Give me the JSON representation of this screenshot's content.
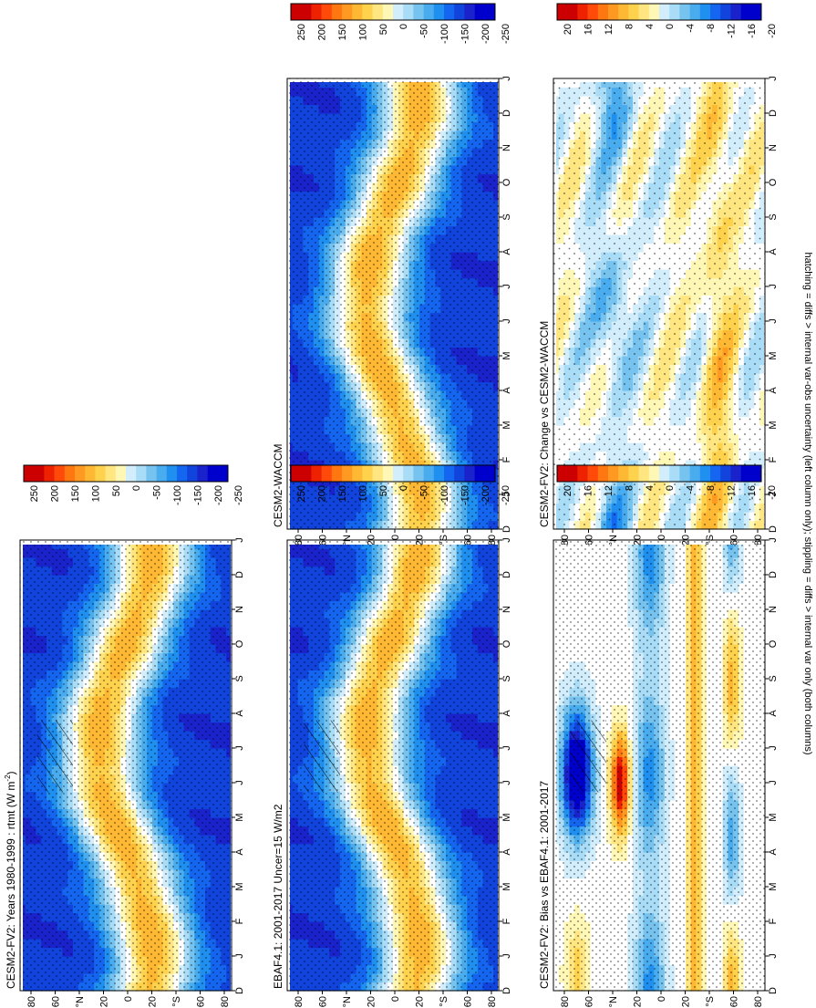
{
  "footer_note": "hatching = diffs > internal var-obs uncertainty (left column only); stippling = diffs > internal var only (both columns)",
  "colors": {
    "plus": [
      "#ffffff",
      "#fff7b5",
      "#ffe680",
      "#ffd24d",
      "#ffb833",
      "#ff9922",
      "#ff7711",
      "#ff4a0a",
      "#ee2200",
      "#cc0000"
    ],
    "minus": [
      "#ffffff",
      "#d2eefc",
      "#a9dcf6",
      "#77c3f0",
      "#49acee",
      "#1f8ff0",
      "#1466f0",
      "#1044dd",
      "#1a22cc",
      "#0000cc"
    ]
  },
  "chart_data": [
    {
      "id": "model-1980",
      "type": "heatmap",
      "title": "CESM2-FV2: Years 1980-1999 : rtmt (W m",
      "title_sup": "-2",
      "title_end": ")",
      "months": [
        "D",
        "J",
        "F",
        "M",
        "A",
        "M",
        "J",
        "J",
        "A",
        "S",
        "O",
        "N",
        "D",
        "J"
      ],
      "lat_ticks": [
        "80",
        "60",
        "°N",
        "20",
        "0",
        "20",
        "°S",
        "60",
        "80"
      ],
      "colorbar_ticks": [
        "250",
        "200",
        "150",
        "100",
        "50",
        "0",
        "-50",
        "-100",
        "-150",
        "-200",
        "-250"
      ],
      "vmax": 250,
      "stipple": "dense",
      "hatch": true,
      "mode": "climo",
      "shift": 0
    },
    {
      "id": "wacc",
      "type": "heatmap",
      "title": "CESM2-WACCM",
      "months": [
        "D",
        "J",
        "F",
        "M",
        "A",
        "M",
        "J",
        "J",
        "A",
        "S",
        "O",
        "N",
        "D",
        "J"
      ],
      "lat_ticks": [
        "80",
        "60",
        "°N",
        "20",
        "0",
        "20",
        "°S",
        "60",
        "80"
      ],
      "colorbar_ticks": [
        "250",
        "200",
        "150",
        "100",
        "50",
        "0",
        "-50",
        "-100",
        "-150",
        "-200",
        "-250"
      ],
      "vmax": 250,
      "stipple": "dense",
      "hatch": false,
      "mode": "climo",
      "shift": 0.4
    },
    {
      "id": "ebaf",
      "type": "heatmap",
      "title": "EBAF4.1: 2001-2017 Uncer=15 W/m2",
      "months": [
        "D",
        "J",
        "F",
        "M",
        "A",
        "M",
        "J",
        "J",
        "A",
        "S",
        "O",
        "N",
        "D",
        "J"
      ],
      "lat_ticks": [
        "80",
        "60",
        "°N",
        "20",
        "0",
        "20",
        "°S",
        "60",
        "80"
      ],
      "colorbar_ticks": [
        "250",
        "200",
        "150",
        "100",
        "50",
        "0",
        "-50",
        "-100",
        "-150",
        "-200",
        "-250"
      ],
      "vmax": 250,
      "stipple": "dense",
      "hatch": true,
      "mode": "climo",
      "shift": -0.3
    },
    {
      "id": "change",
      "type": "heatmap",
      "title": "CESM2-FV2: Change vs CESM2-WACCM",
      "months": [
        "D",
        "J",
        "F",
        "M",
        "A",
        "M",
        "J",
        "J",
        "A",
        "S",
        "O",
        "N",
        "D",
        "J"
      ],
      "lat_ticks": [
        "80",
        "60",
        "°N",
        "20",
        "0",
        "20",
        "°S",
        "60",
        "80"
      ],
      "colorbar_ticks": [
        "20",
        "16",
        "12",
        "8",
        "4",
        "0",
        "-4",
        "-8",
        "-12",
        "-16",
        "-20"
      ],
      "vmax": 20,
      "stipple": "sparse",
      "hatch": false,
      "mode": "change",
      "shift": 0
    },
    {
      "id": "bias",
      "type": "heatmap",
      "title": "CESM2-FV2: Bias vs EBAF4.1: 2001-2017",
      "months": [
        "D",
        "J",
        "F",
        "M",
        "A",
        "M",
        "J",
        "J",
        "A",
        "S",
        "O",
        "N",
        "D",
        "J"
      ],
      "lat_ticks": [
        "80",
        "60",
        "°N",
        "20",
        "0",
        "20",
        "°S",
        "60",
        "80"
      ],
      "colorbar_ticks": [
        "20",
        "16",
        "12",
        "8",
        "4",
        "0",
        "-4",
        "-8",
        "-12",
        "-16",
        "-20"
      ],
      "vmax": 20,
      "stipple": "dense",
      "hatch": true,
      "mode": "bias",
      "shift": 0
    }
  ]
}
